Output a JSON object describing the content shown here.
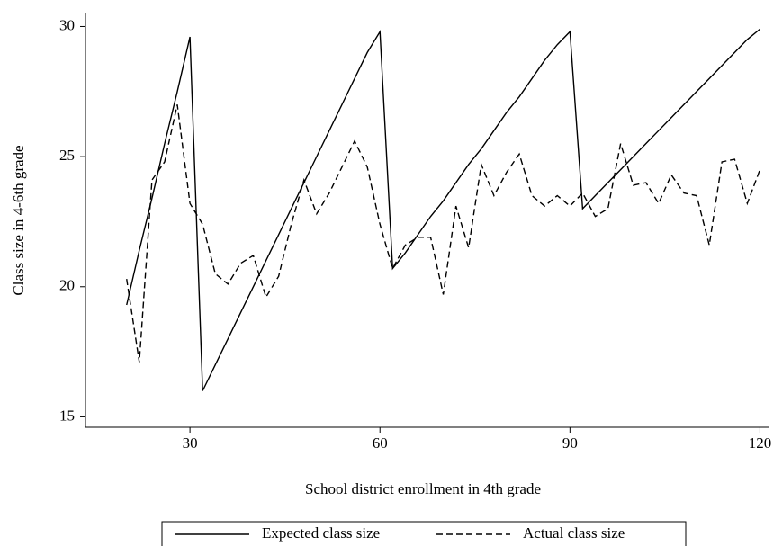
{
  "chart_data": {
    "type": "line",
    "x_label": "School district enrollment in 4th grade",
    "y_label": "Class size in 4-6th grade",
    "x": [
      20,
      22,
      24,
      26,
      28,
      30,
      32,
      34,
      36,
      38,
      40,
      42,
      44,
      46,
      48,
      50,
      52,
      54,
      56,
      58,
      60,
      62,
      64,
      66,
      68,
      70,
      72,
      74,
      76,
      78,
      80,
      82,
      84,
      86,
      88,
      90,
      92,
      94,
      96,
      98,
      100,
      102,
      104,
      106,
      108,
      110,
      112,
      114,
      116,
      118,
      120
    ],
    "series": [
      {
        "name": "Expected class size",
        "color": "#000000",
        "dash": "solid",
        "values": [
          19.3,
          21.4,
          23.4,
          25.5,
          27.5,
          29.6,
          16,
          17,
          18,
          19,
          20,
          21,
          22,
          23,
          24,
          25,
          26,
          27,
          28,
          29,
          29.8,
          20.7,
          21.3,
          22,
          22.7,
          23.3,
          24,
          24.7,
          25.3,
          26,
          26.7,
          27.3,
          28,
          28.7,
          29.3,
          29.8,
          23,
          23.5,
          24,
          24.5,
          25,
          25.5,
          26,
          26.5,
          27,
          27.5,
          28,
          28.5,
          29,
          29.5,
          29.9
        ]
      },
      {
        "name": "Actual class size",
        "color": "#000000",
        "dash": "dashed",
        "values": [
          20.3,
          17.1,
          24.1,
          24.8,
          27,
          23.2,
          22.4,
          20.5,
          20.1,
          20.9,
          21.2,
          19.6,
          20.4,
          22.4,
          24.1,
          22.8,
          23.6,
          24.6,
          25.6,
          24.6,
          22.4,
          20.7,
          21.6,
          21.9,
          21.9,
          19.7,
          23.1,
          21.5,
          24.7,
          23.5,
          24.4,
          25.1,
          23.5,
          23.1,
          23.5,
          23.1,
          23.6,
          22.7,
          23,
          25.5,
          23.9,
          24,
          23.2,
          24.3,
          23.6,
          23.5,
          21.6,
          24.8,
          24.9,
          23.2,
          24.5
        ]
      }
    ],
    "xlim": [
      13.5,
      121.5
    ],
    "xticks": [
      30,
      60,
      90,
      120
    ],
    "ylim": [
      14.6,
      30.5
    ],
    "yticks": [
      15,
      20,
      25,
      30
    ],
    "grid": false,
    "legend": "bottom"
  }
}
